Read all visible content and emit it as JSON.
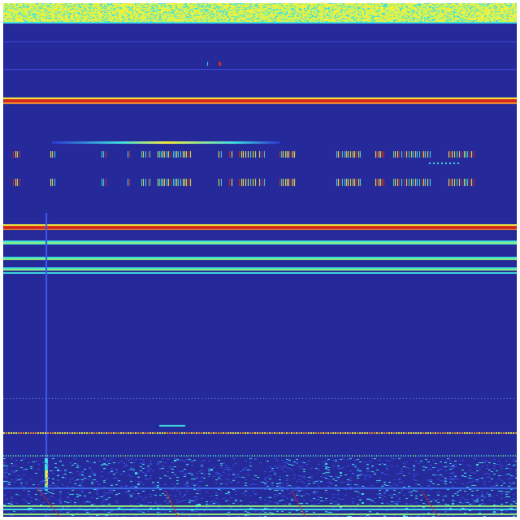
{
  "image": {
    "type": "spectrogram-heatmap",
    "colormap": "jet",
    "colors": {
      "background": "#26299a",
      "low": "#2b3bd0",
      "mid": "#3fe0e0",
      "high": "#f5f03a",
      "peak": "#d42a1e",
      "green": "#8af07a"
    }
  }
}
